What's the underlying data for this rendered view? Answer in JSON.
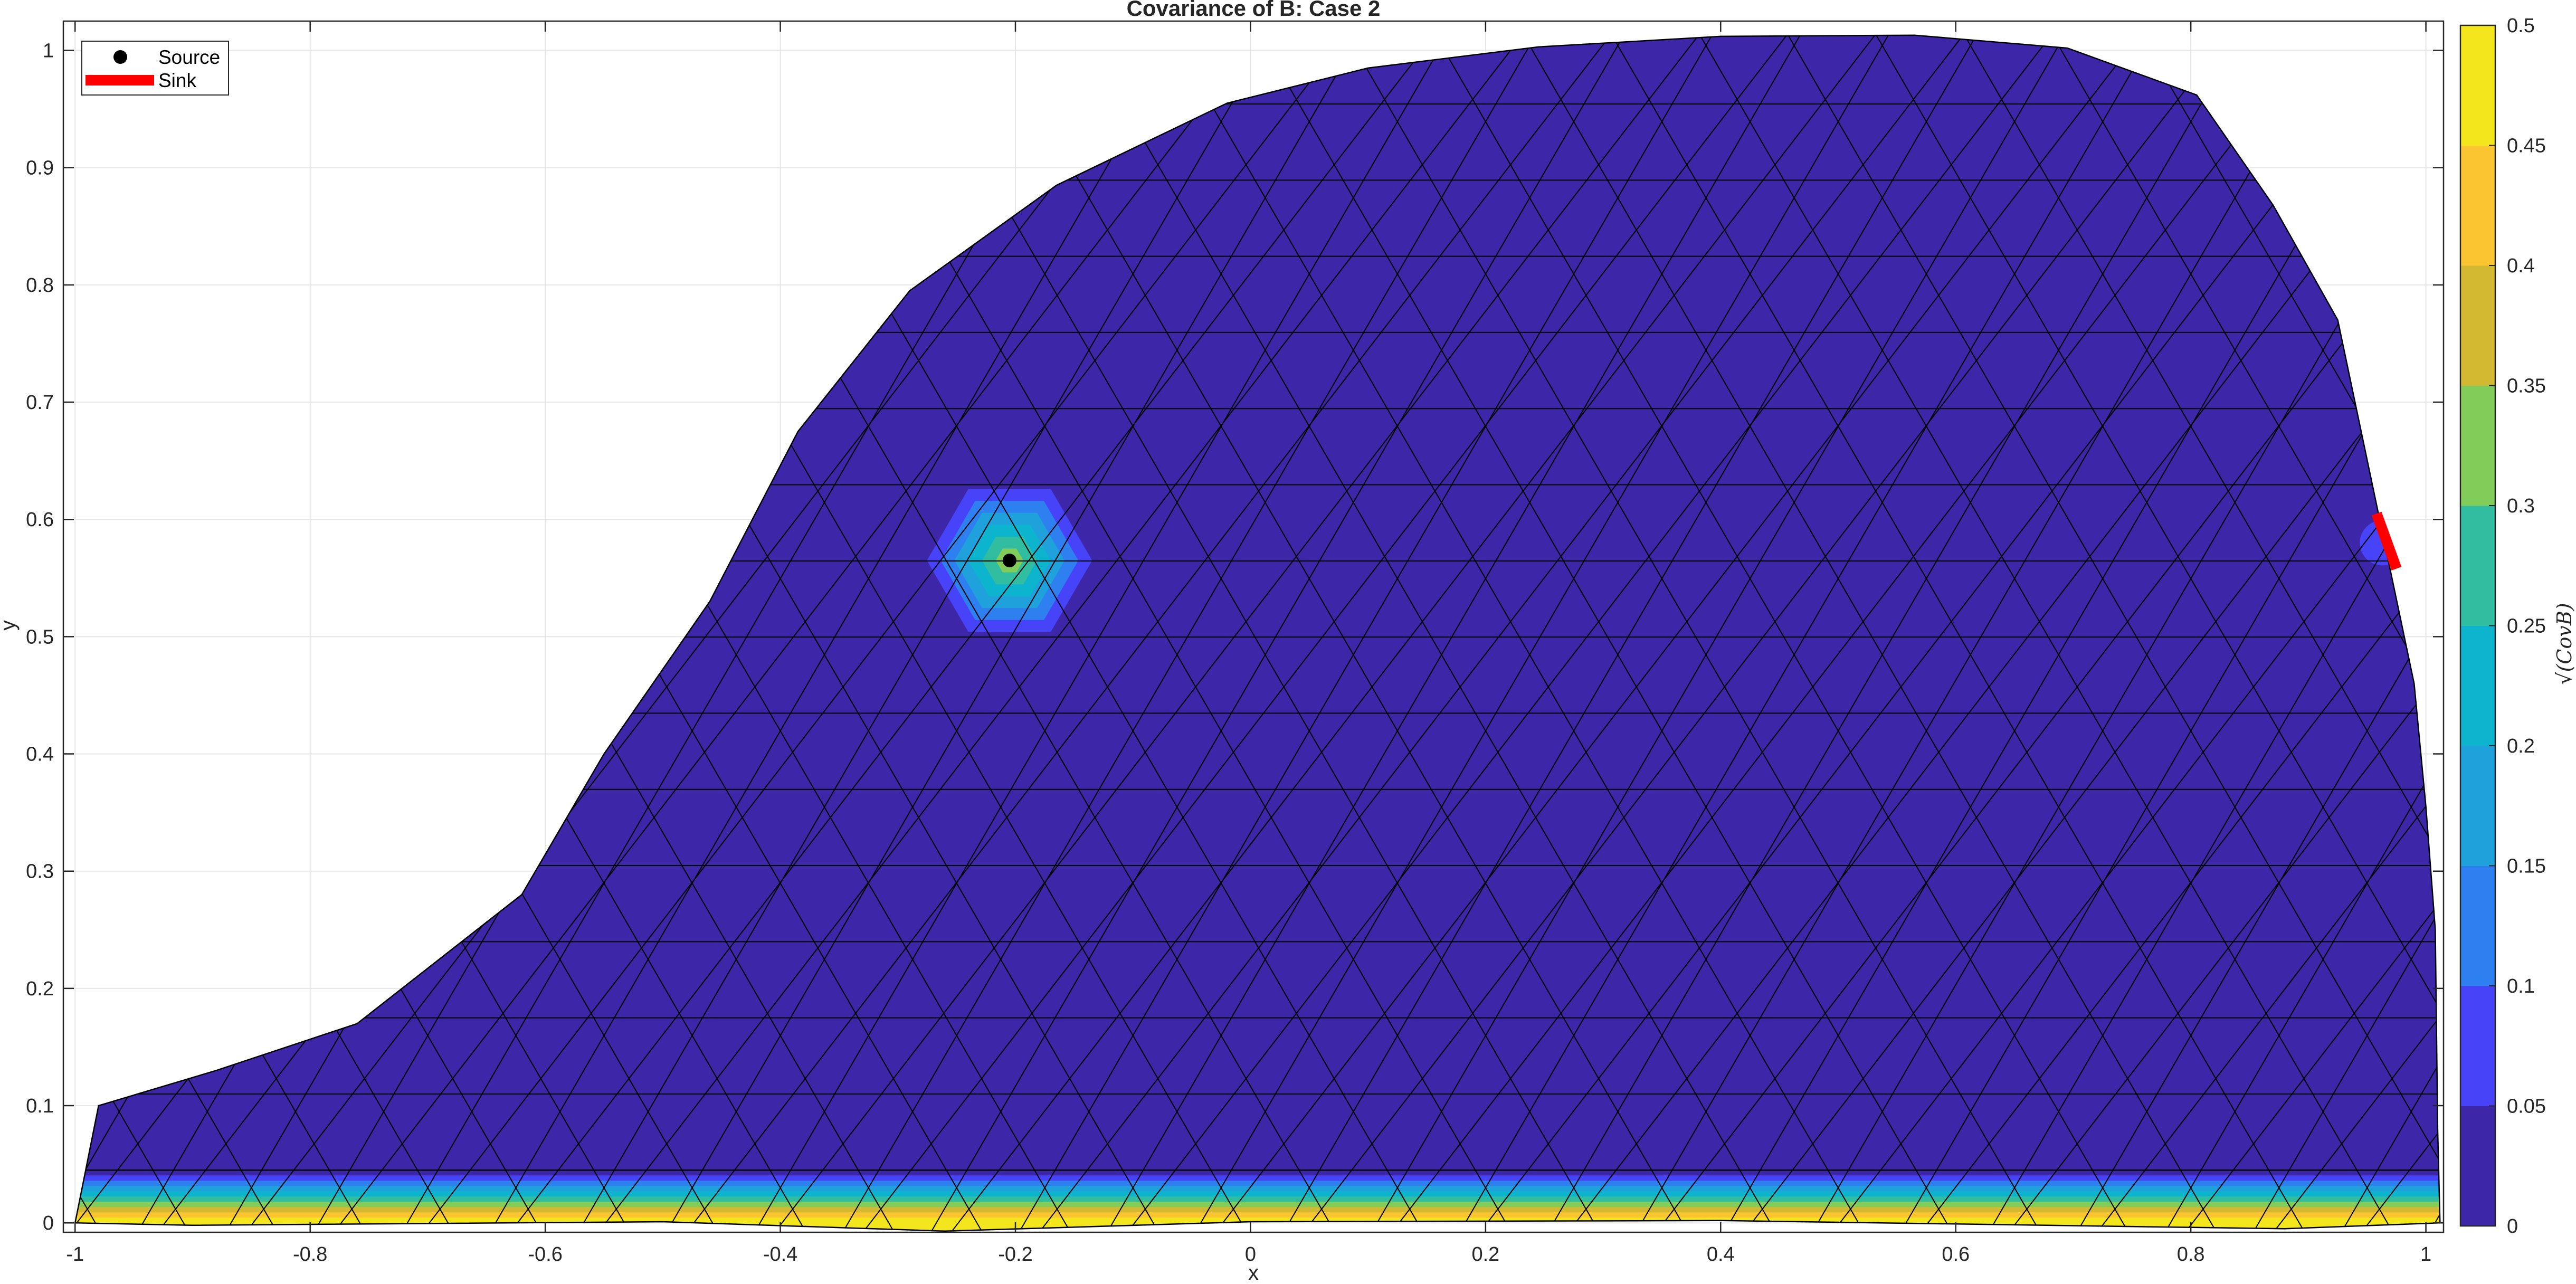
{
  "chart_data": {
    "type": "heatmap",
    "title": "Covariance of B: Case 2",
    "xlabel": "x",
    "ylabel": "y",
    "xlim": [
      -1.01,
      1.015
    ],
    "ylim": [
      -0.008,
      1.025
    ],
    "xticks": [
      -1,
      -0.8,
      -0.6,
      -0.4,
      -0.2,
      0,
      0.2,
      0.4,
      0.6,
      0.8,
      1
    ],
    "xtick_labels": [
      "-1",
      "-0.8",
      "-0.6",
      "-0.4",
      "-0.2",
      "0",
      "0.2",
      "0.4",
      "0.6",
      "0.8",
      "1"
    ],
    "yticks": [
      0,
      0.1,
      0.2,
      0.3,
      0.4,
      0.5,
      0.6,
      0.7,
      0.8,
      0.9,
      1
    ],
    "ytick_labels": [
      "0",
      "0.1",
      "0.2",
      "0.3",
      "0.4",
      "0.5",
      "0.6",
      "0.7",
      "0.8",
      "0.9",
      "1"
    ],
    "grid": true,
    "legend_position": "top-left",
    "legend": [
      {
        "label": "Source",
        "marker": "dot",
        "color": "#000000"
      },
      {
        "label": "Sink",
        "marker": "thick-line",
        "color": "#ff0000"
      }
    ],
    "domain_boundary": [
      [
        -0.98,
        0.1
      ],
      [
        -0.88,
        0.13
      ],
      [
        -0.76,
        0.17
      ],
      [
        -0.62,
        0.28
      ],
      [
        -0.55,
        0.4
      ],
      [
        -0.46,
        0.53
      ],
      [
        -0.385,
        0.675
      ],
      [
        -0.29,
        0.795
      ],
      [
        -0.165,
        0.885
      ],
      [
        -0.02,
        0.955
      ],
      [
        0.1,
        0.985
      ],
      [
        0.245,
        1.003
      ],
      [
        0.4,
        1.012
      ],
      [
        0.565,
        1.013
      ],
      [
        0.695,
        1.002
      ],
      [
        0.805,
        0.962
      ],
      [
        0.87,
        0.868
      ],
      [
        0.925,
        0.77
      ],
      [
        0.99,
        0.46
      ],
      [
        1.0,
        0.355
      ],
      [
        1.008,
        0.25
      ],
      [
        1.01,
        0.08
      ],
      [
        1.012,
        0.0
      ],
      [
        0.88,
        -0.005
      ],
      [
        0.4,
        0.002
      ],
      [
        0.0,
        0.001
      ],
      [
        -0.26,
        -0.007
      ],
      [
        -0.5,
        0.001
      ],
      [
        -0.9,
        -0.002
      ],
      [
        -1.0,
        0.0
      ]
    ],
    "base_value": 0.025,
    "mesh_spacing": 0.075,
    "source": {
      "x": -0.205,
      "y": 0.565,
      "peak_value": 0.32,
      "radius": 0.082
    },
    "sink": {
      "x1": 0.958,
      "y1": 0.605,
      "x2": 0.975,
      "y2": 0.558,
      "color": "#ff0000"
    },
    "sink_halo": {
      "x": 0.963,
      "y": 0.58,
      "peak_value": 0.07,
      "radius": 0.035
    },
    "bottom_band": {
      "y_top": 0.045,
      "peak_value": 0.5
    },
    "colorbar": {
      "label": "√(CovB)",
      "min": 0,
      "max": 0.5,
      "ticks": [
        0,
        0.05,
        0.1,
        0.15,
        0.2,
        0.25,
        0.3,
        0.35,
        0.4,
        0.45,
        0.5
      ],
      "tick_labels": [
        "0",
        "0.05",
        "0.1",
        "0.15",
        "0.2",
        "0.25",
        "0.3",
        "0.35",
        "0.4",
        "0.45",
        "0.5"
      ],
      "colors": [
        "#3e26a8",
        "#4743f8",
        "#2e7ff0",
        "#1fa1dc",
        "#0cb4ce",
        "#31bea0",
        "#82cc5a",
        "#d2b931",
        "#fbc532",
        "#f4e61d"
      ]
    }
  }
}
